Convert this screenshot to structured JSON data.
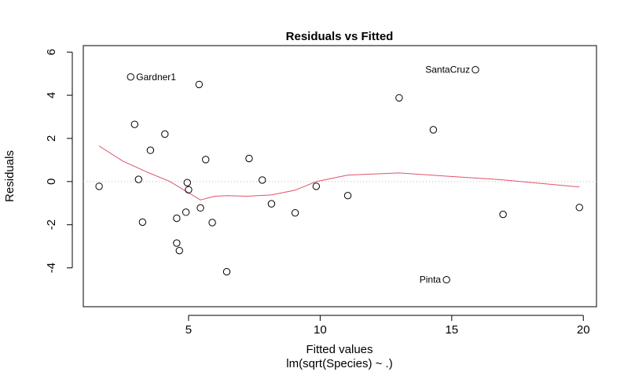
{
  "chart_data": {
    "type": "scatter",
    "title": "Residuals vs Fitted",
    "xlabel": "Fitted values",
    "subtitle": "lm(sqrt(Species) ~ .)",
    "ylabel": "Residuals",
    "xlim": [
      1.0,
      20.5
    ],
    "ylim": [
      -5.8,
      6.3
    ],
    "x_ticks": [
      5,
      10,
      15,
      20
    ],
    "y_ticks": [
      -4,
      -2,
      0,
      2,
      4,
      6
    ],
    "grid": false,
    "reference_line": {
      "y": 0,
      "style": "dotted",
      "color": "#bbbbbb"
    },
    "points": [
      {
        "x": 2.8,
        "y": 4.85
      },
      {
        "x": 5.4,
        "y": 4.5
      },
      {
        "x": 2.95,
        "y": 2.65
      },
      {
        "x": 4.1,
        "y": 2.2
      },
      {
        "x": 3.55,
        "y": 1.45
      },
      {
        "x": 5.65,
        "y": 1.02
      },
      {
        "x": 7.3,
        "y": 1.07
      },
      {
        "x": 3.1,
        "y": 0.1
      },
      {
        "x": 4.95,
        "y": -0.05
      },
      {
        "x": 7.8,
        "y": 0.07
      },
      {
        "x": 1.6,
        "y": -0.22
      },
      {
        "x": 5.0,
        "y": -0.38
      },
      {
        "x": 9.85,
        "y": -0.22
      },
      {
        "x": 11.05,
        "y": -0.65
      },
      {
        "x": 8.15,
        "y": -1.03
      },
      {
        "x": 5.45,
        "y": -1.22
      },
      {
        "x": 4.9,
        "y": -1.42
      },
      {
        "x": 9.05,
        "y": -1.45
      },
      {
        "x": 4.55,
        "y": -1.7
      },
      {
        "x": 3.25,
        "y": -1.88
      },
      {
        "x": 5.9,
        "y": -1.9
      },
      {
        "x": 4.55,
        "y": -2.85
      },
      {
        "x": 4.65,
        "y": -3.2
      },
      {
        "x": 6.45,
        "y": -4.18
      },
      {
        "x": 13.0,
        "y": 3.88
      },
      {
        "x": 14.3,
        "y": 2.4
      },
      {
        "x": 16.95,
        "y": -1.52
      },
      {
        "x": 19.85,
        "y": -1.2
      },
      {
        "x": 15.9,
        "y": 5.18
      },
      {
        "x": 14.8,
        "y": -4.55
      }
    ],
    "point_labels": [
      {
        "text": "Gardner1",
        "x": 2.8,
        "y": 4.85,
        "anchor": "right"
      },
      {
        "text": "SantaCruz",
        "x": 15.9,
        "y": 5.18,
        "anchor": "left"
      },
      {
        "text": "Pinta",
        "x": 14.8,
        "y": -4.55,
        "anchor": "left"
      }
    ],
    "smoother": {
      "color": "#df536b",
      "x": [
        1.6,
        2.5,
        3.5,
        4.3,
        4.9,
        5.45,
        6.0,
        6.5,
        7.2,
        8.15,
        9.05,
        9.85,
        11.05,
        13.0,
        14.8,
        16.95,
        19.85
      ],
      "y": [
        1.65,
        0.95,
        0.4,
        0.0,
        -0.45,
        -0.85,
        -0.68,
        -0.65,
        -0.68,
        -0.62,
        -0.4,
        0.0,
        0.3,
        0.4,
        0.25,
        0.08,
        -0.25
      ]
    }
  }
}
